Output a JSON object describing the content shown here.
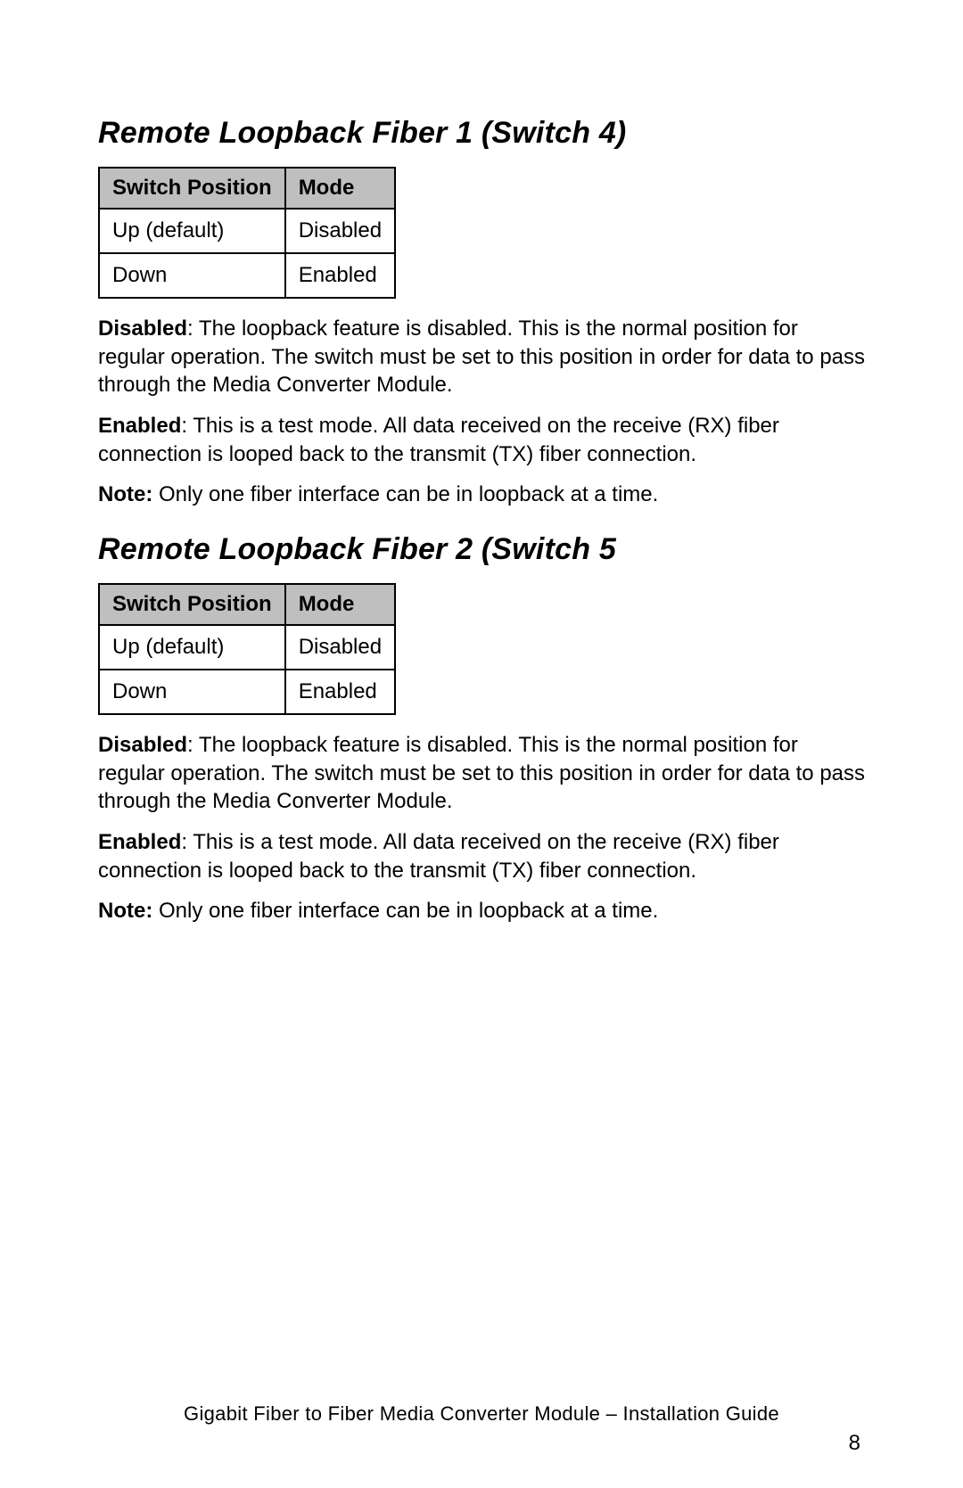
{
  "sections": [
    {
      "heading": "Remote Loopback Fiber 1 (Switch 4)",
      "table": {
        "columns": [
          "Switch Position",
          "Mode"
        ],
        "rows": [
          [
            "Up (default)",
            "Disabled"
          ],
          [
            "Down",
            "Enabled"
          ]
        ],
        "header_bg": "#bfbfbf",
        "border_color": "#000000"
      },
      "paragraphs": [
        {
          "label": "Disabled",
          "text": ": The loopback feature is disabled. This is the normal position for regular operation. The switch must be set to this position in order for data to pass through the Media Converter Module."
        },
        {
          "label": "Enabled",
          "text": ": This is a test mode. All data received on the receive (RX) fiber connection is looped back to the transmit (TX) fiber connection."
        },
        {
          "label": "Note:",
          "text": " Only one fiber interface can be in loopback at a time."
        }
      ]
    },
    {
      "heading": "Remote Loopback Fiber 2 (Switch 5",
      "table": {
        "columns": [
          "Switch Position",
          "Mode"
        ],
        "rows": [
          [
            "Up (default)",
            "Disabled"
          ],
          [
            "Down",
            "Enabled"
          ]
        ],
        "header_bg": "#bfbfbf",
        "border_color": "#000000"
      },
      "paragraphs": [
        {
          "label": "Disabled",
          "text": ": The loopback feature is disabled. This is the normal position for regular operation. The switch must be set to this position in order for data to pass through the Media Converter Module."
        },
        {
          "label": "Enabled",
          "text": ": This is a test mode. All data received on the receive (RX) fiber connection is looped back to the transmit (TX) fiber connection."
        },
        {
          "label": "Note:",
          "text": " Only one fiber interface can be in loopback at a time."
        }
      ]
    }
  ],
  "footer": "Gigabit Fiber to Fiber Media Converter Module – Installation Guide",
  "page_number": "8",
  "styles": {
    "page_bg": "#ffffff",
    "text_color": "#000000",
    "heading_fontsize": 34,
    "body_fontsize": 24,
    "footer_fontsize": 22
  }
}
